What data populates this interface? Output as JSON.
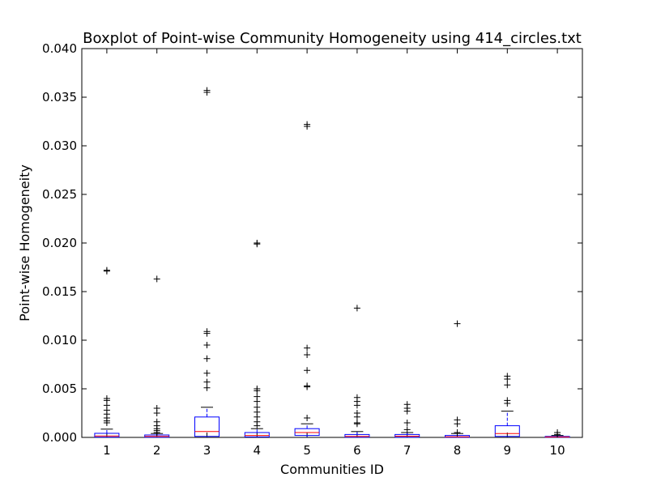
{
  "chart_data": {
    "type": "boxplot",
    "title": "Boxplot of Point-wise Community Homogeneity using 414_circles.txt",
    "xlabel": "Communities ID",
    "ylabel": "Point-wise Homogeneity",
    "ylim": [
      0,
      0.04
    ],
    "yticks": [
      "0.000",
      "0.005",
      "0.010",
      "0.015",
      "0.020",
      "0.025",
      "0.030",
      "0.035",
      "0.040"
    ],
    "categories": [
      "1",
      "2",
      "3",
      "4",
      "5",
      "6",
      "7",
      "8",
      "9",
      "10"
    ],
    "colors": {
      "box": "#0000ff",
      "median": "#ff0000",
      "whisker": "#0000ff",
      "cap": "#000000",
      "flier": "#000000"
    },
    "boxes": [
      {
        "id": "1",
        "q1": 3e-05,
        "median": 0.00015,
        "q3": 0.00042,
        "whislo": 0.0,
        "whishi": 0.00085,
        "fliers": [
          0.0172,
          0.0171,
          0.004,
          0.0038,
          0.0033,
          0.0028,
          0.0024,
          0.002,
          0.0017,
          0.0015
        ]
      },
      {
        "id": "2",
        "q1": 2e-05,
        "median": 0.0001,
        "q3": 0.00025,
        "whislo": 0.0,
        "whishi": 0.0004,
        "fliers": [
          0.0163,
          0.003,
          0.0025,
          0.0016,
          0.0012,
          0.0009,
          0.0007,
          0.0005
        ]
      },
      {
        "id": "3",
        "q1": 0.0001,
        "median": 0.0006,
        "q3": 0.0021,
        "whislo": 0.0,
        "whishi": 0.0031,
        "fliers": [
          0.0357,
          0.0355,
          0.0109,
          0.0107,
          0.0095,
          0.0081,
          0.0066,
          0.0057,
          0.0051
        ]
      },
      {
        "id": "4",
        "q1": 5e-05,
        "median": 0.0002,
        "q3": 0.0005,
        "whislo": 0.0,
        "whishi": 0.0009,
        "fliers": [
          0.02,
          0.0199,
          0.005,
          0.0048,
          0.0042,
          0.0037,
          0.0031,
          0.0026,
          0.0021,
          0.0016,
          0.0012
        ]
      },
      {
        "id": "5",
        "q1": 0.0002,
        "median": 0.0005,
        "q3": 0.0009,
        "whislo": 0.0,
        "whishi": 0.0014,
        "fliers": [
          0.0322,
          0.032,
          0.0092,
          0.0085,
          0.0069,
          0.0053,
          0.0052,
          0.002
        ]
      },
      {
        "id": "6",
        "q1": 2e-05,
        "median": 0.0001,
        "q3": 0.0003,
        "whislo": 0.0,
        "whishi": 0.0006,
        "fliers": [
          0.0133,
          0.0041,
          0.0037,
          0.0033,
          0.0025,
          0.0021,
          0.0015,
          0.0014
        ]
      },
      {
        "id": "7",
        "q1": 2e-05,
        "median": 0.00012,
        "q3": 0.0003,
        "whislo": 0.0,
        "whishi": 0.0005,
        "fliers": [
          0.0034,
          0.003,
          0.0027,
          0.0015,
          0.0008
        ]
      },
      {
        "id": "8",
        "q1": 1e-05,
        "median": 6e-05,
        "q3": 0.0002,
        "whislo": 0.0,
        "whishi": 0.0004,
        "fliers": [
          0.0117,
          0.0018,
          0.0014,
          0.0005
        ]
      },
      {
        "id": "9",
        "q1": 0.0001,
        "median": 0.0004,
        "q3": 0.0012,
        "whislo": 0.0,
        "whishi": 0.0027,
        "fliers": [
          0.0063,
          0.006,
          0.0054,
          0.0038,
          0.0035
        ]
      },
      {
        "id": "10",
        "q1": 1e-05,
        "median": 4e-05,
        "q3": 0.0001,
        "whislo": 0.0,
        "whishi": 0.0002,
        "fliers": [
          0.0005,
          0.0003
        ]
      }
    ]
  }
}
